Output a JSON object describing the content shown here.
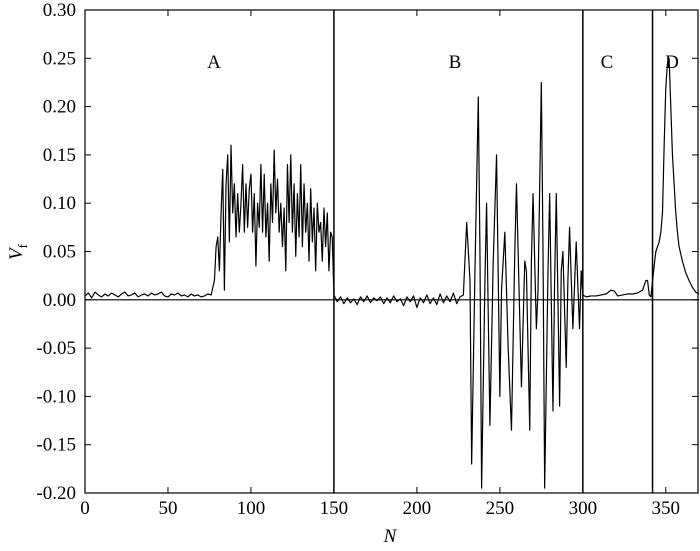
{
  "chart_data": {
    "type": "line",
    "x_label": "N",
    "y_label": "V",
    "y_label_sub": "f",
    "region_labels": [
      "A",
      "B",
      "C",
      "D"
    ],
    "vlines": [
      150,
      300,
      342
    ],
    "color": "#000000",
    "xlim": [
      0,
      370
    ],
    "ylim": [
      -0.2,
      0.3
    ],
    "xticks": [
      0,
      50,
      100,
      150,
      200,
      250,
      300,
      350
    ],
    "yticks": [
      {
        "value": 0.3,
        "label": "0.30"
      },
      {
        "value": 0.25,
        "label": "0.25"
      },
      {
        "value": 0.2,
        "label": "0.20"
      },
      {
        "value": 0.15,
        "label": "0.15"
      },
      {
        "value": 0.1,
        "label": "0.10"
      },
      {
        "value": 0.05,
        "label": "0.05"
      },
      {
        "value": 0,
        "label": "0.00"
      },
      {
        "value": -0.05,
        "label": "-0.05"
      },
      {
        "value": -0.1,
        "label": "-0.10"
      },
      {
        "value": -0.15,
        "label": "-0.15"
      },
      {
        "value": -0.2,
        "label": "-0.20"
      }
    ],
    "x": [
      0,
      2,
      4,
      6,
      8,
      10,
      12,
      14,
      16,
      18,
      20,
      22,
      24,
      26,
      28,
      30,
      32,
      34,
      36,
      38,
      40,
      42,
      44,
      46,
      48,
      50,
      52,
      54,
      56,
      58,
      60,
      62,
      64,
      66,
      68,
      70,
      72,
      74,
      76,
      78,
      79,
      80,
      81,
      82,
      83,
      84,
      85,
      86,
      87,
      88,
      89,
      90,
      91,
      92,
      93,
      94,
      95,
      96,
      97,
      98,
      99,
      100,
      101,
      102,
      103,
      104,
      105,
      106,
      107,
      108,
      109,
      110,
      111,
      112,
      113,
      114,
      115,
      116,
      117,
      118,
      119,
      120,
      121,
      122,
      123,
      124,
      125,
      126,
      127,
      128,
      129,
      130,
      131,
      132,
      133,
      134,
      135,
      136,
      137,
      138,
      139,
      140,
      141,
      142,
      143,
      144,
      145,
      146,
      147,
      148,
      149,
      150,
      152,
      154,
      156,
      158,
      160,
      162,
      164,
      166,
      168,
      170,
      172,
      174,
      176,
      178,
      180,
      182,
      184,
      186,
      188,
      190,
      192,
      194,
      196,
      198,
      200,
      202,
      204,
      206,
      208,
      210,
      212,
      214,
      216,
      218,
      220,
      222,
      224,
      226,
      228,
      230,
      232,
      233,
      235,
      237,
      238,
      239,
      241,
      242,
      244,
      246,
      248,
      250,
      251,
      253,
      255,
      257,
      259,
      260,
      262,
      263,
      265,
      266,
      268,
      269,
      270,
      272,
      273,
      275,
      276,
      277,
      279,
      280,
      282,
      283,
      284,
      286,
      287,
      288,
      290,
      291,
      292,
      294,
      296,
      298,
      299,
      300,
      302,
      305,
      308,
      311,
      314,
      317,
      319,
      321,
      324,
      327,
      330,
      333,
      336,
      338,
      339,
      340,
      341,
      343,
      344,
      345,
      346,
      347,
      348,
      349,
      350,
      351,
      352,
      353,
      354,
      355,
      356,
      357,
      358,
      360,
      362,
      364,
      366,
      368,
      370
    ],
    "values": [
      0.004,
      0.007,
      0.002,
      0.008,
      0.005,
      0.003,
      0.006,
      0.004,
      0.007,
      0.005,
      0.003,
      0.006,
      0.008,
      0.004,
      0.005,
      0.007,
      0.003,
      0.005,
      0.006,
      0.004,
      0.007,
      0.005,
      0.006,
      0.008,
      0.004,
      0.003,
      0.006,
      0.005,
      0.007,
      0.004,
      0.005,
      0.003,
      0.006,
      0.004,
      0.005,
      0.003,
      0.004,
      0.006,
      0.005,
      0.02,
      0.055,
      0.065,
      0.03,
      0.09,
      0.135,
      0.01,
      0.12,
      0.15,
      0.06,
      0.16,
      0.09,
      0.12,
      0.065,
      0.11,
      0.07,
      0.1,
      0.14,
      0.07,
      0.12,
      0.075,
      0.115,
      0.13,
      0.07,
      0.11,
      0.035,
      0.1,
      0.075,
      0.14,
      0.07,
      0.13,
      0.065,
      0.1,
      0.04,
      0.12,
      0.08,
      0.155,
      0.09,
      0.125,
      0.07,
      0.1,
      0.055,
      0.095,
      0.03,
      0.14,
      0.08,
      0.15,
      0.07,
      0.12,
      0.045,
      0.11,
      0.065,
      0.14,
      0.055,
      0.12,
      0.07,
      0.1,
      0.04,
      0.115,
      0.06,
      0.095,
      0.03,
      0.1,
      0.07,
      0.08,
      0.04,
      0.095,
      0.055,
      0.09,
      0.03,
      0.07,
      0.065,
      0.005,
      -0.002,
      0.003,
      -0.004,
      0.002,
      -0.003,
      0.001,
      -0.005,
      0.003,
      -0.002,
      0.004,
      -0.003,
      0.002,
      -0.001,
      0.003,
      -0.004,
      0.002,
      -0.003,
      0.004,
      -0.002,
      0.001,
      -0.006,
      0.003,
      -0.002,
      0.004,
      -0.008,
      0.002,
      -0.003,
      0.005,
      -0.004,
      0.002,
      -0.005,
      0.006,
      -0.003,
      0.004,
      -0.002,
      0.007,
      -0.004,
      0.003,
      0.005,
      0.08,
      0.02,
      -0.17,
      0.03,
      0.21,
      0.05,
      -0.195,
      0.02,
      0.1,
      -0.13,
      0.04,
      0.15,
      -0.1,
      0.01,
      0.07,
      -0.05,
      -0.135,
      0.05,
      0.12,
      -0.02,
      -0.09,
      0.04,
      0.03,
      -0.135,
      0.04,
      0.11,
      -0.03,
      0.01,
      0.225,
      0.05,
      -0.195,
      0.03,
      0.11,
      -0.115,
      0.02,
      0.11,
      -0.11,
      0.03,
      0.05,
      -0.07,
      0.02,
      0.075,
      -0.03,
      0.06,
      -0.03,
      0.03,
      0.005,
      0.003,
      0.004,
      0.004,
      0.005,
      0.006,
      0.01,
      0.009,
      0.004,
      0.005,
      0.006,
      0.006,
      0.007,
      0.01,
      0.02,
      0.02,
      0.005,
      0.003,
      0.035,
      0.05,
      0.055,
      0.06,
      0.07,
      0.09,
      0.16,
      0.22,
      0.245,
      0.25,
      0.2,
      0.15,
      0.12,
      0.09,
      0.07,
      0.055,
      0.04,
      0.028,
      0.02,
      0.013,
      0.008,
      0.006
    ]
  }
}
